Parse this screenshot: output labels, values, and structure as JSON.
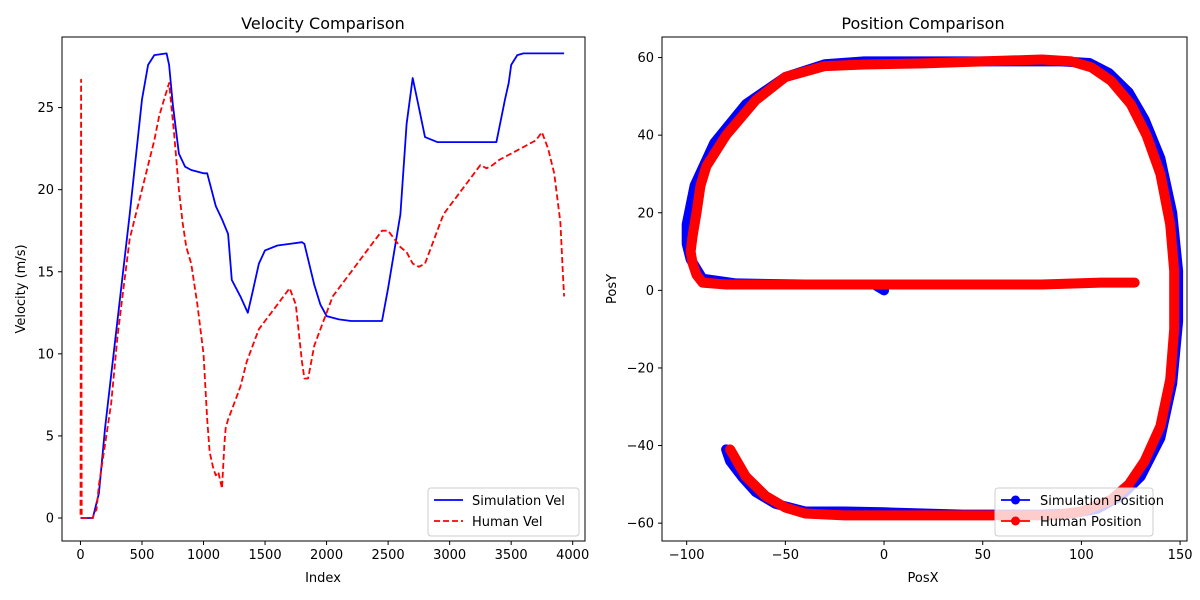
{
  "chart_data": [
    {
      "type": "line",
      "title": "Velocity Comparison",
      "xlabel": "Index",
      "ylabel": "Velocity (m/s)",
      "xlim": [
        -150,
        4100
      ],
      "ylim": [
        -1.4,
        29.3
      ],
      "xticks": [
        0,
        500,
        1000,
        1500,
        2000,
        2500,
        3000,
        3500,
        4000
      ],
      "xtick_labels": [
        "0",
        "500",
        "1000",
        "1500",
        "2000",
        "2500",
        "3000",
        "3500",
        "4000"
      ],
      "yticks": [
        0,
        5,
        10,
        15,
        20,
        25
      ],
      "ytick_labels": [
        "0",
        "5",
        "10",
        "15",
        "20",
        "25"
      ],
      "grid": false,
      "legend_position": "lower right",
      "series": [
        {
          "name": "Simulation Vel",
          "color": "#0000ff",
          "style": "solid",
          "x": [
            0,
            100,
            150,
            200,
            300,
            400,
            500,
            550,
            600,
            700,
            720,
            750,
            800,
            850,
            900,
            1000,
            1030,
            1100,
            1150,
            1200,
            1230,
            1300,
            1360,
            1400,
            1450,
            1500,
            1600,
            1700,
            1800,
            1820,
            1900,
            1950,
            2000,
            2100,
            2200,
            2300,
            2400,
            2450,
            2500,
            2600,
            2650,
            2700,
            2750,
            2800,
            2900,
            3000,
            3200,
            3380,
            3450,
            3480,
            3500,
            3550,
            3600,
            3700,
            3800,
            3930
          ],
          "y": [
            0,
            0,
            1.5,
            5.5,
            12,
            18.5,
            25.5,
            27.6,
            28.2,
            28.3,
            27.6,
            25.2,
            22.2,
            21.4,
            21.2,
            21.0,
            21.0,
            19.0,
            18.2,
            17.3,
            14.5,
            13.5,
            12.5,
            13.8,
            15.5,
            16.3,
            16.6,
            16.7,
            16.8,
            16.7,
            14.2,
            13.0,
            12.3,
            12.1,
            12.0,
            12.0,
            12.0,
            12.0,
            14.0,
            18.5,
            24.0,
            26.8,
            25.0,
            23.2,
            22.9,
            22.9,
            22.9,
            22.9,
            25.5,
            26.5,
            27.6,
            28.2,
            28.3,
            28.3,
            28.3,
            28.3
          ]
        },
        {
          "name": "Human Vel",
          "color": "#ff0000",
          "style": "dashed",
          "x": [
            0,
            5,
            10,
            20,
            40,
            60,
            80,
            100,
            110,
            130,
            150,
            200,
            250,
            300,
            350,
            400,
            450,
            500,
            550,
            600,
            640,
            680,
            720,
            740,
            760,
            800,
            830,
            860,
            900,
            950,
            1000,
            1030,
            1050,
            1080,
            1100,
            1120,
            1150,
            1170,
            1180,
            1200,
            1250,
            1300,
            1350,
            1400,
            1450,
            1500,
            1550,
            1600,
            1650,
            1700,
            1750,
            1800,
            1820,
            1850,
            1900,
            1950,
            2000,
            2050,
            2100,
            2150,
            2200,
            2250,
            2300,
            2350,
            2400,
            2450,
            2500,
            2550,
            2600,
            2650,
            2700,
            2750,
            2800,
            2850,
            2900,
            2950,
            3000,
            3050,
            3100,
            3150,
            3200,
            3250,
            3300,
            3350,
            3400,
            3450,
            3500,
            3550,
            3600,
            3650,
            3700,
            3750,
            3800,
            3850,
            3900,
            3920,
            3930
          ],
          "y": [
            0.2,
            26.7,
            0,
            0,
            0,
            0,
            0,
            0,
            0.3,
            0.5,
            2,
            4.5,
            7,
            11,
            14,
            17,
            18.5,
            20,
            21.5,
            23,
            24.5,
            25.5,
            26.5,
            25,
            23.5,
            20,
            18,
            16.5,
            15.5,
            13,
            10,
            6,
            4,
            3,
            2.6,
            2.8,
            1.8,
            4.5,
            5.5,
            6,
            7,
            8,
            9.5,
            10.5,
            11.5,
            12,
            12.5,
            13,
            13.5,
            14,
            13,
            9.5,
            8.5,
            8.5,
            10.5,
            11.5,
            12.5,
            13.5,
            14,
            14.5,
            15,
            15.5,
            16,
            16.5,
            17,
            17.5,
            17.5,
            17,
            16.5,
            16.2,
            15.5,
            15.3,
            15.5,
            16.5,
            17.5,
            18.5,
            19,
            19.5,
            20,
            20.5,
            21,
            21.5,
            21.3,
            21.5,
            21.8,
            22,
            22.2,
            22.4,
            22.6,
            22.8,
            23,
            23.5,
            22.5,
            21,
            18,
            15,
            13.5
          ]
        }
      ]
    },
    {
      "type": "line",
      "title": "Position Comparison",
      "xlabel": "PosX",
      "ylabel": "PosY",
      "xlim": [
        -112.5,
        153.5
      ],
      "ylim": [
        -64.6,
        65.3
      ],
      "xticks": [
        -100,
        -50,
        0,
        50,
        100,
        150
      ],
      "xtick_labels": [
        "−100",
        "−50",
        "0",
        "50",
        "100",
        "150"
      ],
      "yticks": [
        -60,
        -40,
        -20,
        0,
        20,
        40,
        60
      ],
      "ytick_labels": [
        "−60",
        "−40",
        "−20",
        "0",
        "20",
        "40",
        "60"
      ],
      "grid": false,
      "legend_position": "lower right",
      "series": [
        {
          "name": "Simulation Position",
          "color": "#0000ff",
          "marker": "circle",
          "x": [
            0,
            -5,
            -40,
            -75,
            -92,
            -98,
            -100,
            -100,
            -96,
            -86,
            -70,
            -50,
            -30,
            -10,
            10,
            40,
            70,
            90,
            104,
            114,
            124,
            132,
            140,
            146,
            149,
            149,
            146,
            140,
            130,
            120,
            108,
            95,
            80,
            60,
            40,
            20,
            0,
            -20,
            -40,
            -55,
            -65,
            -72,
            -78,
            -80
          ],
          "y": [
            0,
            1.5,
            1.5,
            1.8,
            3,
            8,
            12,
            17,
            27,
            38,
            48,
            55,
            58.3,
            59,
            59,
            59,
            59,
            59,
            58.6,
            56,
            51,
            44,
            34,
            20,
            5,
            -8,
            -24,
            -38,
            -48,
            -53,
            -56.3,
            -57.5,
            -57.8,
            -57.8,
            -57.8,
            -57.5,
            -57.2,
            -57,
            -57,
            -55,
            -52,
            -48,
            -44,
            -41
          ]
        },
        {
          "name": "Human Position",
          "color": "#ff0000",
          "marker": "circle",
          "x": [
            127,
            110,
            80,
            40,
            0,
            -40,
            -80,
            -92,
            -95,
            -97,
            -98,
            -97,
            -95,
            -93,
            -90,
            -80,
            -65,
            -50,
            -30,
            -10,
            20,
            50,
            80,
            95,
            105,
            115,
            125,
            133,
            140,
            145,
            147,
            147,
            145,
            140,
            132,
            124,
            115,
            100,
            85,
            60,
            40,
            20,
            0,
            -20,
            -40,
            -50,
            -60,
            -70,
            -78
          ],
          "y": [
            2,
            2,
            1.5,
            1.5,
            1.5,
            1.5,
            1.5,
            2,
            4,
            7,
            10,
            14,
            20,
            27,
            32,
            40,
            49,
            55,
            57.8,
            58.2,
            58.5,
            59,
            59.5,
            59,
            57.5,
            54,
            48,
            40,
            30,
            17,
            5,
            -10,
            -23,
            -35,
            -44,
            -50,
            -54,
            -57,
            -58,
            -58,
            -58,
            -58,
            -58,
            -58,
            -57.5,
            -56,
            -53,
            -48,
            -41
          ]
        }
      ]
    }
  ]
}
